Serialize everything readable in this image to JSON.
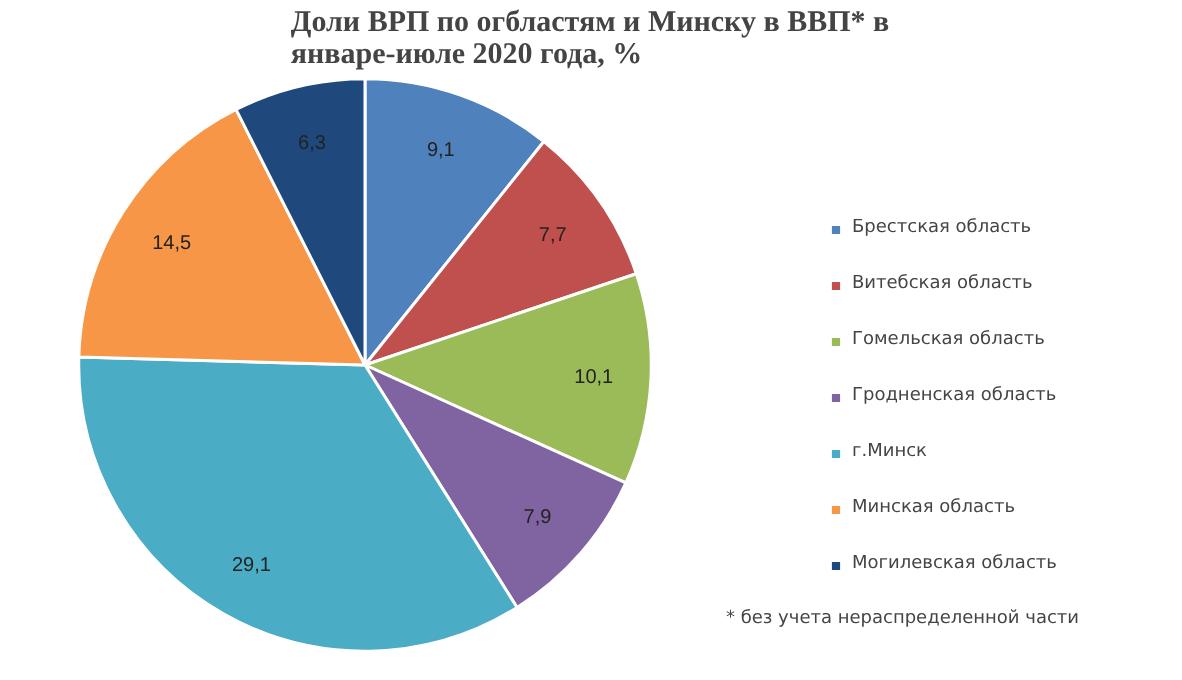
{
  "chart_data": {
    "type": "pie",
    "title": "Доли ВРП по огбластям и Минску в ВВП* в январе-июле 2020 года, %",
    "categories": [
      "Брестская область",
      "Витебская область",
      "Гомельская область",
      "Гродненская область",
      "г.Минск",
      "Минская область",
      "Могилевская область"
    ],
    "values": [
      9.1,
      7.7,
      10.1,
      7.9,
      29.1,
      14.5,
      6.3
    ],
    "value_labels": [
      "9,1",
      "7,7",
      "10,1",
      "7,9",
      "29,1",
      "14,5",
      "6,3"
    ],
    "colors": [
      "#4f81bd",
      "#c0504d",
      "#9bbb59",
      "#8064a2",
      "#4bacc6",
      "#f79646",
      "#1f497d"
    ],
    "legend": "right",
    "annotations": [
      "* без учета нераспределенной части"
    ]
  }
}
